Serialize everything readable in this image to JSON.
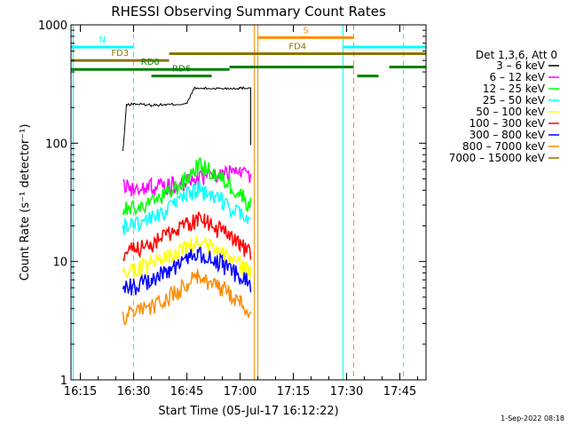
{
  "chart_data": {
    "type": "line",
    "title": "RHESSI Observing Summary Count Rates",
    "xlabel": "Start Time (05-Jul-17 16:12:22)",
    "ylabel": "Count Rate (s⁻¹ detector⁻¹)",
    "y_scale": "log",
    "ylim": [
      1,
      1000
    ],
    "xlim": [
      "16:12:22",
      "17:52:22"
    ],
    "x_ticks": [
      "16:15",
      "16:30",
      "16:45",
      "17:00",
      "17:15",
      "17:30",
      "17:45"
    ],
    "y_ticks": [
      "1",
      "10",
      "100",
      "1000"
    ],
    "grid": false,
    "legend": {
      "placement": "right",
      "header": "Det 1,3,6, Att 0",
      "entries": [
        {
          "label": "3 – 6 keV",
          "color": "#000000"
        },
        {
          "label": "6 – 12 keV",
          "color": "#ff00ff"
        },
        {
          "label": "12 – 25 keV",
          "color": "#00ff00"
        },
        {
          "label": "25 – 50 keV",
          "color": "#00ffff"
        },
        {
          "label": "50 – 100 keV",
          "color": "#ffff00"
        },
        {
          "label": "100 – 300 keV",
          "color": "#ff0000"
        },
        {
          "label": "300 – 800 keV",
          "color": "#0000ff"
        },
        {
          "label": "800 – 7000 keV",
          "color": "#ff8c00"
        },
        {
          "label": "7000 – 15000 keV",
          "color": "#8b7300"
        }
      ]
    },
    "series": [
      {
        "name": "3 – 6 keV",
        "color": "#000000",
        "x": [
          "16:27",
          "16:28",
          "16:30",
          "16:35",
          "16:40",
          "16:45",
          "16:47",
          "16:50",
          "16:55",
          "17:00",
          "17:03",
          "17:03"
        ],
        "values": [
          85,
          210,
          215,
          210,
          212,
          215,
          290,
          290,
          290,
          292,
          295,
          95
        ]
      },
      {
        "name": "6 – 12 keV",
        "color": "#ff00ff",
        "x": [
          "16:27",
          "16:30",
          "16:35",
          "16:40",
          "16:45",
          "16:50",
          "16:55",
          "17:00",
          "17:03"
        ],
        "values": [
          42,
          42,
          43,
          44,
          47,
          53,
          55,
          56,
          55
        ]
      },
      {
        "name": "12 – 25 keV",
        "color": "#00ff00",
        "x": [
          "16:27",
          "16:30",
          "16:35",
          "16:40",
          "16:45",
          "16:48",
          "16:50",
          "16:55",
          "17:00",
          "17:03"
        ],
        "values": [
          27,
          28,
          31,
          38,
          50,
          65,
          62,
          50,
          38,
          30
        ]
      },
      {
        "name": "25 – 50 keV",
        "color": "#00ffff",
        "x": [
          "16:27",
          "16:30",
          "16:35",
          "16:40",
          "16:45",
          "16:48",
          "16:50",
          "16:55",
          "17:00",
          "17:03"
        ],
        "values": [
          20,
          21,
          23,
          28,
          36,
          42,
          40,
          33,
          25,
          20
        ]
      },
      {
        "name": "50 – 100 keV",
        "color": "#ffff00",
        "x": [
          "16:27",
          "16:30",
          "16:35",
          "16:40",
          "16:45",
          "16:48",
          "16:50",
          "16:55",
          "17:00",
          "17:03"
        ],
        "values": [
          8,
          8.5,
          9.5,
          11,
          13,
          14.5,
          14,
          12,
          9.5,
          8
        ]
      },
      {
        "name": "100 – 300 keV",
        "color": "#ff0000",
        "x": [
          "16:27",
          "16:30",
          "16:35",
          "16:40",
          "16:45",
          "16:48",
          "16:50",
          "16:55",
          "17:00",
          "17:03"
        ],
        "values": [
          12,
          12.5,
          14,
          17,
          21,
          23,
          22,
          18,
          14,
          12
        ]
      },
      {
        "name": "300 – 800 keV",
        "color": "#0000ff",
        "x": [
          "16:27",
          "16:30",
          "16:35",
          "16:40",
          "16:45",
          "16:48",
          "16:50",
          "16:55",
          "17:00",
          "17:03"
        ],
        "values": [
          6,
          6.2,
          7,
          8.5,
          10.5,
          12,
          11.5,
          9.5,
          7.5,
          6.5
        ]
      },
      {
        "name": "800 – 7000 keV",
        "color": "#ff8c00",
        "x": [
          "16:27",
          "16:30",
          "16:35",
          "16:40",
          "16:45",
          "16:48",
          "16:50",
          "16:55",
          "17:00",
          "17:03"
        ],
        "values": [
          3.5,
          3.7,
          4.2,
          5,
          6.5,
          7.5,
          7.2,
          6,
          4.5,
          3.8
        ]
      }
    ],
    "flags": [
      {
        "label": "N",
        "color": "#00ffff",
        "x_start": "16:12:22",
        "x_end": "16:30",
        "level": 650
      },
      {
        "label": "",
        "color": "#00ffff",
        "x_start": "17:29",
        "x_end": "17:52:22",
        "level": 650
      },
      {
        "label": "S",
        "color": "#ff8c00",
        "x_start": "17:05",
        "x_end": "17:32",
        "level": 780
      },
      {
        "label": "FD3",
        "color": "#8b7300",
        "x_start": "16:12:22",
        "x_end": "16:40",
        "level": 500
      },
      {
        "label": "FD4",
        "color": "#8b7300",
        "x_start": "16:40",
        "x_end": "17:52:22",
        "level": 570
      },
      {
        "label": "RD0",
        "color": "#008000",
        "x_start": "16:12:22",
        "x_end": "16:57",
        "level": 420
      },
      {
        "label": "",
        "color": "#008000",
        "x_start": "16:57",
        "x_end": "17:32",
        "level": 440
      },
      {
        "label": "",
        "color": "#008000",
        "x_start": "17:33",
        "x_end": "17:39",
        "level": 370
      },
      {
        "label": "",
        "color": "#008000",
        "x_start": "17:42",
        "x_end": "17:52:22",
        "level": 440
      },
      {
        "label": "RD6",
        "color": "#008000",
        "x_start": "16:35",
        "x_end": "16:52",
        "level": 370
      }
    ],
    "vlines": [
      {
        "x": "16:13",
        "color": "#00ffff",
        "style": "solid"
      },
      {
        "x": "16:30",
        "color": "#00ffff",
        "style": "dashed"
      },
      {
        "x": "17:29",
        "color": "#00ffff",
        "style": "solid"
      },
      {
        "x": "17:46",
        "color": "#00ffff",
        "style": "dashed"
      },
      {
        "x": "17:04",
        "color": "#ff8c00",
        "style": "solid"
      },
      {
        "x": "17:05",
        "color": "#ff8c00",
        "style": "solid"
      },
      {
        "x": "17:32",
        "color": "#ff8c00",
        "style": "dashed"
      }
    ]
  },
  "timestamp": "1-Sep-2022 08:18"
}
